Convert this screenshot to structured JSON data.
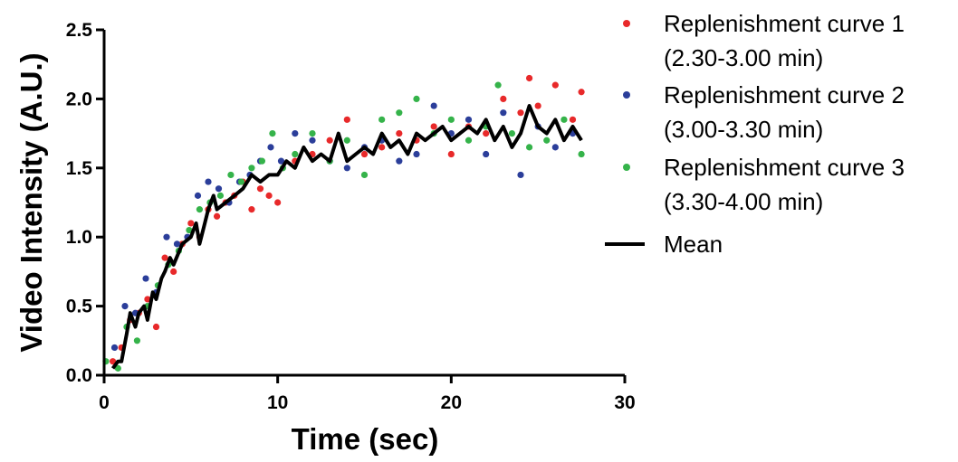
{
  "chart_data": {
    "type": "scatter",
    "title": "",
    "xlabel": "Time (sec)",
    "ylabel": "Video Intensity (A.U.)",
    "xlim": [
      0,
      30
    ],
    "ylim": [
      0,
      2.5
    ],
    "x_ticks": [
      0,
      10,
      20,
      30
    ],
    "y_ticks": [
      0.0,
      0.5,
      1.0,
      1.5,
      2.0,
      2.5
    ],
    "x_tick_labels": [
      "0",
      "10",
      "20",
      "30"
    ],
    "y_tick_labels": [
      "0.0",
      "0.5",
      "1.0",
      "1.5",
      "2.0",
      "2.5"
    ],
    "grid": false,
    "legend_position": "right",
    "series": [
      {
        "name_lines": [
          "Replenishment curve 1",
          "(2.30-3.00 min)"
        ],
        "marker": "dot",
        "color": "#e8292a",
        "x": [
          0.5,
          1.0,
          1.5,
          2.0,
          2.5,
          3.0,
          3.5,
          4.0,
          4.5,
          5.0,
          5.5,
          6.0,
          6.5,
          7.0,
          7.5,
          8.0,
          8.5,
          9.0,
          9.5,
          10.0,
          11.0,
          12.0,
          13.0,
          14.0,
          15.0,
          16.0,
          17.0,
          18.0,
          19.0,
          20.0,
          21.0,
          22.0,
          23.0,
          24.0,
          24.5,
          25.0,
          26.0,
          27.0,
          27.5
        ],
        "y": [
          0.1,
          0.2,
          0.4,
          0.45,
          0.55,
          0.35,
          0.85,
          0.75,
          0.95,
          1.1,
          1.0,
          1.2,
          1.15,
          1.25,
          1.3,
          1.4,
          1.2,
          1.35,
          1.3,
          1.25,
          1.55,
          1.6,
          1.7,
          1.85,
          1.6,
          1.65,
          1.75,
          1.7,
          1.8,
          1.6,
          1.8,
          1.75,
          2.0,
          1.9,
          2.15,
          1.95,
          2.1,
          1.85,
          2.05
        ]
      },
      {
        "name_lines": [
          "Replenishment curve 2",
          "(3.00-3.30 min)"
        ],
        "marker": "dot",
        "color": "#2b3e9a",
        "x": [
          0.6,
          1.2,
          1.8,
          2.4,
          3.0,
          3.6,
          4.2,
          4.8,
          5.4,
          6.0,
          6.6,
          7.2,
          7.8,
          8.4,
          9.0,
          9.6,
          10.2,
          11.0,
          12.0,
          13.0,
          14.0,
          15.0,
          16.0,
          17.0,
          18.0,
          19.0,
          20.0,
          21.0,
          22.0,
          23.0,
          24.0,
          25.0,
          26.0,
          27.0
        ],
        "y": [
          0.2,
          0.5,
          0.45,
          0.7,
          0.6,
          1.0,
          0.95,
          1.0,
          1.3,
          1.4,
          1.35,
          1.25,
          1.4,
          1.45,
          1.55,
          1.65,
          1.55,
          1.75,
          1.7,
          1.55,
          1.5,
          1.65,
          1.7,
          1.55,
          1.6,
          1.95,
          1.75,
          1.85,
          1.6,
          1.9,
          1.45,
          1.8,
          1.65,
          1.75
        ]
      },
      {
        "name_lines": [
          "Replenishment curve 3",
          "(3.30-4.00 min)"
        ],
        "marker": "dot",
        "color": "#35b34a",
        "x": [
          0.1,
          0.8,
          1.3,
          1.9,
          2.5,
          3.1,
          3.7,
          4.3,
          4.9,
          5.5,
          6.1,
          6.7,
          7.3,
          7.9,
          8.5,
          9.1,
          9.7,
          10.3,
          11.0,
          12.0,
          13.0,
          14.0,
          15.0,
          16.0,
          17.0,
          18.0,
          19.0,
          20.0,
          21.0,
          22.0,
          22.7,
          23.5,
          24.5,
          25.5,
          26.5,
          27.5
        ],
        "y": [
          0.1,
          0.05,
          0.35,
          0.25,
          0.5,
          0.65,
          0.8,
          0.9,
          1.05,
          1.2,
          1.25,
          1.3,
          1.45,
          1.4,
          1.5,
          1.55,
          1.75,
          1.5,
          1.6,
          1.75,
          1.55,
          1.7,
          1.45,
          1.85,
          1.9,
          2.0,
          1.75,
          1.85,
          1.7,
          1.8,
          2.1,
          1.75,
          1.65,
          1.7,
          1.85,
          1.6
        ]
      },
      {
        "name_lines": [
          "Mean"
        ],
        "marker": "line",
        "color": "#000000",
        "x": [
          0.5,
          0.8,
          1.0,
          1.3,
          1.5,
          1.8,
          2.0,
          2.3,
          2.5,
          2.8,
          3.0,
          3.3,
          3.5,
          3.8,
          4.0,
          4.5,
          5.0,
          5.3,
          5.5,
          5.8,
          6.0,
          6.3,
          6.5,
          7.0,
          7.5,
          8.0,
          8.5,
          9.0,
          9.5,
          10.0,
          10.5,
          11.0,
          11.5,
          12.0,
          12.5,
          13.0,
          13.5,
          14.0,
          14.5,
          15.0,
          15.5,
          16.0,
          16.5,
          17.0,
          17.5,
          18.0,
          18.5,
          19.0,
          19.5,
          20.0,
          20.5,
          21.0,
          21.5,
          22.0,
          22.5,
          23.0,
          23.5,
          24.0,
          24.5,
          25.0,
          25.5,
          26.0,
          26.5,
          27.0,
          27.5
        ],
        "y": [
          0.05,
          0.1,
          0.1,
          0.3,
          0.45,
          0.35,
          0.45,
          0.5,
          0.4,
          0.6,
          0.55,
          0.7,
          0.75,
          0.85,
          0.8,
          0.95,
          1.0,
          1.1,
          0.95,
          1.1,
          1.2,
          1.3,
          1.2,
          1.25,
          1.3,
          1.35,
          1.45,
          1.4,
          1.45,
          1.45,
          1.55,
          1.5,
          1.65,
          1.55,
          1.6,
          1.55,
          1.75,
          1.55,
          1.6,
          1.65,
          1.6,
          1.75,
          1.65,
          1.7,
          1.6,
          1.75,
          1.7,
          1.75,
          1.8,
          1.7,
          1.75,
          1.8,
          1.75,
          1.85,
          1.7,
          1.8,
          1.65,
          1.75,
          1.95,
          1.8,
          1.75,
          1.85,
          1.7,
          1.8,
          1.7
        ]
      }
    ]
  }
}
